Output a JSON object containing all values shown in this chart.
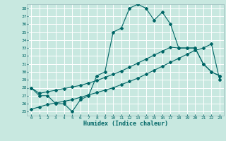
{
  "xlabel": "Humidex (Indice chaleur)",
  "bg_color": "#c8e8e0",
  "grid_color": "#ffffff",
  "line_color": "#006666",
  "xlim": [
    -0.5,
    23.5
  ],
  "ylim": [
    24.5,
    38.5
  ],
  "xticks": [
    0,
    1,
    2,
    3,
    4,
    5,
    6,
    7,
    8,
    9,
    10,
    11,
    12,
    13,
    14,
    15,
    16,
    17,
    18,
    19,
    20,
    21,
    22,
    23
  ],
  "yticks": [
    25,
    26,
    27,
    28,
    29,
    30,
    31,
    32,
    33,
    34,
    35,
    36,
    37,
    38
  ],
  "line1_x": [
    0,
    1,
    2,
    3,
    4,
    5,
    6,
    7,
    8,
    9,
    10,
    11,
    12,
    13,
    14,
    15,
    16,
    17,
    18,
    19,
    20,
    21,
    22,
    23
  ],
  "line1_y": [
    28.0,
    27.0,
    27.0,
    26.0,
    26.0,
    25.0,
    26.5,
    27.0,
    29.5,
    30.0,
    35.0,
    35.5,
    38.0,
    38.5,
    38.0,
    36.5,
    37.5,
    36.0,
    33.0,
    33.0,
    33.0,
    31.0,
    30.0,
    29.5
  ],
  "line2_x": [
    0,
    1,
    2,
    3,
    4,
    5,
    6,
    7,
    8,
    9,
    10,
    11,
    12,
    13,
    14,
    15,
    16,
    17,
    18,
    19,
    20,
    21,
    22,
    23
  ],
  "line2_y": [
    28.0,
    27.3,
    27.5,
    27.7,
    27.9,
    28.1,
    28.3,
    28.6,
    28.9,
    29.3,
    29.7,
    30.1,
    30.6,
    31.1,
    31.6,
    32.1,
    32.6,
    33.1,
    33.0,
    33.0,
    33.0,
    31.0,
    30.0,
    29.5
  ],
  "line3_x": [
    0,
    1,
    2,
    3,
    4,
    5,
    6,
    7,
    8,
    9,
    10,
    11,
    12,
    13,
    14,
    15,
    16,
    17,
    18,
    19,
    20,
    21,
    22,
    23
  ],
  "line3_y": [
    25.3,
    25.6,
    25.9,
    26.1,
    26.3,
    26.5,
    26.8,
    27.1,
    27.4,
    27.7,
    28.0,
    28.4,
    28.8,
    29.2,
    29.7,
    30.2,
    30.7,
    31.2,
    31.7,
    32.2,
    32.7,
    33.0,
    33.5,
    29.0
  ]
}
